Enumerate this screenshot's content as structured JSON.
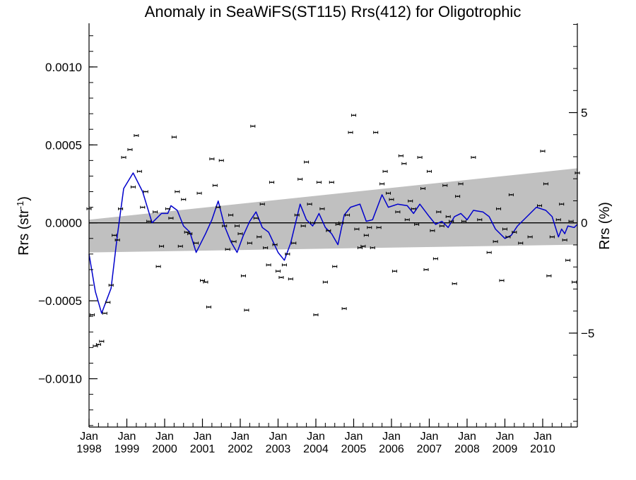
{
  "chart_data": {
    "type": "scatter",
    "title": "Anomaly in SeaWiFS(ST115) Rrs(412) for Oligotrophic",
    "ylabel": {
      "prefix": "Rrs (str",
      "superscript": "-1",
      "suffix": ")"
    },
    "y2label": "Rrs (%)",
    "xlim": [
      "1998-01",
      "2010-12"
    ],
    "ylim": [
      -0.00131,
      0.00128
    ],
    "y2lim": [
      -9.26,
      9.05
    ],
    "x_ticks": [
      {
        "date": "1998-01",
        "line1": "Jan",
        "line2": "1998"
      },
      {
        "date": "1999-01",
        "line1": "Jan",
        "line2": "1999"
      },
      {
        "date": "2000-01",
        "line1": "Jan",
        "line2": "2000"
      },
      {
        "date": "2001-01",
        "line1": "Jan",
        "line2": "2001"
      },
      {
        "date": "2002-01",
        "line1": "Jan",
        "line2": "2002"
      },
      {
        "date": "2003-01",
        "line1": "Jan",
        "line2": "2003"
      },
      {
        "date": "2004-01",
        "line1": "Jan",
        "line2": "2004"
      },
      {
        "date": "2005-01",
        "line1": "Jan",
        "line2": "2005"
      },
      {
        "date": "2006-01",
        "line1": "Jan",
        "line2": "2006"
      },
      {
        "date": "2007-01",
        "line1": "Jan",
        "line2": "2007"
      },
      {
        "date": "2008-01",
        "line1": "Jan",
        "line2": "2008"
      },
      {
        "date": "2009-01",
        "line1": "Jan",
        "line2": "2009"
      },
      {
        "date": "2010-01",
        "line1": "Jan",
        "line2": "2010"
      }
    ],
    "y_ticks": [
      {
        "value": 0.001,
        "label": "0.0010"
      },
      {
        "value": 0.0005,
        "label": "0.0005"
      },
      {
        "value": 0.0,
        "label": "0.0000"
      },
      {
        "value": -0.0005,
        "label": "−0.0005"
      },
      {
        "value": -0.001,
        "label": "−0.0010"
      }
    ],
    "y2_ticks": [
      {
        "value": 5,
        "label": "5"
      },
      {
        "value": 0,
        "label": "0"
      },
      {
        "value": -5,
        "label": "−5"
      }
    ],
    "grid": false,
    "colors": {
      "smoothed": "#0000cc",
      "band": "#c0c0c0",
      "points": "#000000",
      "zero_line": "#000000"
    },
    "band": {
      "upper": [
        {
          "date": "1998-01",
          "y": 2e-05
        },
        {
          "date": "2010-12",
          "y": 0.00035
        }
      ],
      "lower": [
        {
          "date": "1998-01",
          "y": -0.00019
        },
        {
          "date": "2010-12",
          "y": -0.00014
        }
      ]
    },
    "points": [
      {
        "date": "1998-01",
        "y": 9e-05
      },
      {
        "date": "1998-02",
        "y": -0.00059
      },
      {
        "date": "1998-03",
        "y": -0.00079
      },
      {
        "date": "1998-04",
        "y": -0.00078
      },
      {
        "date": "1998-05",
        "y": -0.00076
      },
      {
        "date": "1998-06",
        "y": -0.00058
      },
      {
        "date": "1998-07",
        "y": -0.00051
      },
      {
        "date": "1998-08",
        "y": -0.0004
      },
      {
        "date": "1998-09",
        "y": -8e-05
      },
      {
        "date": "1998-10",
        "y": -0.00011
      },
      {
        "date": "1998-11",
        "y": 9e-05
      },
      {
        "date": "1998-12",
        "y": 0.00042
      },
      {
        "date": "1999-02",
        "y": 0.00047
      },
      {
        "date": "1999-03",
        "y": 0.00023
      },
      {
        "date": "1999-04",
        "y": 0.00056
      },
      {
        "date": "1999-05",
        "y": 0.00033
      },
      {
        "date": "1999-06",
        "y": 0.0001
      },
      {
        "date": "1999-07",
        "y": 0.0002
      },
      {
        "date": "1999-08",
        "y": 1e-05
      },
      {
        "date": "1999-10",
        "y": 7e-05
      },
      {
        "date": "1999-11",
        "y": -0.00028
      },
      {
        "date": "1999-12",
        "y": -0.00015
      },
      {
        "date": "2000-02",
        "y": 9e-05
      },
      {
        "date": "2000-03",
        "y": 3e-05
      },
      {
        "date": "2000-04",
        "y": 0.00055
      },
      {
        "date": "2000-05",
        "y": 0.0002
      },
      {
        "date": "2000-06",
        "y": -0.00015
      },
      {
        "date": "2000-07",
        "y": 0.00015
      },
      {
        "date": "2000-08",
        "y": -6e-05
      },
      {
        "date": "2000-09",
        "y": -7e-05
      },
      {
        "date": "2000-11",
        "y": -0.00013
      },
      {
        "date": "2000-12",
        "y": 0.00019
      },
      {
        "date": "2001-01",
        "y": -0.00037
      },
      {
        "date": "2001-02",
        "y": -0.00038
      },
      {
        "date": "2001-03",
        "y": -0.00054
      },
      {
        "date": "2001-04",
        "y": 0.00041
      },
      {
        "date": "2001-05",
        "y": 0.00024
      },
      {
        "date": "2001-06",
        "y": 0.0001
      },
      {
        "date": "2001-07",
        "y": 0.0004
      },
      {
        "date": "2001-08",
        "y": -2e-05
      },
      {
        "date": "2001-09",
        "y": -0.00017
      },
      {
        "date": "2001-10",
        "y": 5e-05
      },
      {
        "date": "2001-11",
        "y": -0.00012
      },
      {
        "date": "2001-12",
        "y": -2e-05
      },
      {
        "date": "2002-01",
        "y": -7e-05
      },
      {
        "date": "2002-02",
        "y": -0.00034
      },
      {
        "date": "2002-03",
        "y": -0.00056
      },
      {
        "date": "2002-04",
        "y": -0.00013
      },
      {
        "date": "2002-05",
        "y": 0.00062
      },
      {
        "date": "2002-06",
        "y": 3e-05
      },
      {
        "date": "2002-07",
        "y": -9e-05
      },
      {
        "date": "2002-08",
        "y": 0.00012
      },
      {
        "date": "2002-09",
        "y": -0.00016
      },
      {
        "date": "2002-10",
        "y": -0.00027
      },
      {
        "date": "2002-11",
        "y": 0.00026
      },
      {
        "date": "2002-12",
        "y": -0.00014
      },
      {
        "date": "2003-01",
        "y": -0.00031
      },
      {
        "date": "2003-02",
        "y": -0.00035
      },
      {
        "date": "2003-03",
        "y": -0.00027
      },
      {
        "date": "2003-04",
        "y": -0.0002
      },
      {
        "date": "2003-05",
        "y": -0.00036
      },
      {
        "date": "2003-06",
        "y": -0.00013
      },
      {
        "date": "2003-07",
        "y": 5e-05
      },
      {
        "date": "2003-08",
        "y": 0.00028
      },
      {
        "date": "2003-09",
        "y": -2e-05
      },
      {
        "date": "2003-10",
        "y": 0.00039
      },
      {
        "date": "2003-11",
        "y": 0.00012
      },
      {
        "date": "2003-12",
        "y": 0
      },
      {
        "date": "2004-01",
        "y": -0.00059
      },
      {
        "date": "2004-02",
        "y": 0.00026
      },
      {
        "date": "2004-03",
        "y": 9e-05
      },
      {
        "date": "2004-04",
        "y": -0.00038
      },
      {
        "date": "2004-05",
        "y": -5e-05
      },
      {
        "date": "2004-06",
        "y": 0.00026
      },
      {
        "date": "2004-07",
        "y": -0.00028
      },
      {
        "date": "2004-08",
        "y": -1e-05
      },
      {
        "date": "2004-09",
        "y": 0
      },
      {
        "date": "2004-10",
        "y": -0.00055
      },
      {
        "date": "2004-11",
        "y": 5e-05
      },
      {
        "date": "2004-12",
        "y": 0.00058
      },
      {
        "date": "2005-01",
        "y": 0.00069
      },
      {
        "date": "2005-02",
        "y": -4e-05
      },
      {
        "date": "2005-03",
        "y": -0.00016
      },
      {
        "date": "2005-04",
        "y": -0.00015
      },
      {
        "date": "2005-05",
        "y": -8e-05
      },
      {
        "date": "2005-06",
        "y": -3e-05
      },
      {
        "date": "2005-07",
        "y": -0.00016
      },
      {
        "date": "2005-08",
        "y": 0.00058
      },
      {
        "date": "2005-09",
        "y": -3e-05
      },
      {
        "date": "2005-10",
        "y": 0.00025
      },
      {
        "date": "2005-11",
        "y": 0.00033
      },
      {
        "date": "2005-12",
        "y": 0.00019
      },
      {
        "date": "2006-01",
        "y": 0.00015
      },
      {
        "date": "2006-02",
        "y": -0.00031
      },
      {
        "date": "2006-03",
        "y": 7e-05
      },
      {
        "date": "2006-04",
        "y": 0.00043
      },
      {
        "date": "2006-05",
        "y": 0.00038
      },
      {
        "date": "2006-06",
        "y": 2e-05
      },
      {
        "date": "2006-07",
        "y": 0.00014
      },
      {
        "date": "2006-08",
        "y": 9e-05
      },
      {
        "date": "2006-09",
        "y": -1e-05
      },
      {
        "date": "2006-10",
        "y": 0.00042
      },
      {
        "date": "2006-11",
        "y": 0.00022
      },
      {
        "date": "2006-12",
        "y": -0.0003
      },
      {
        "date": "2007-01",
        "y": 0.00033
      },
      {
        "date": "2007-02",
        "y": -5e-05
      },
      {
        "date": "2007-03",
        "y": -0.00023
      },
      {
        "date": "2007-04",
        "y": 7e-05
      },
      {
        "date": "2007-05",
        "y": -2e-05
      },
      {
        "date": "2007-06",
        "y": 0.00024
      },
      {
        "date": "2007-07",
        "y": 4e-05
      },
      {
        "date": "2007-08",
        "y": 1e-05
      },
      {
        "date": "2007-09",
        "y": -0.00039
      },
      {
        "date": "2007-10",
        "y": 0.00017
      },
      {
        "date": "2007-11",
        "y": 0.00025
      },
      {
        "date": "2007-12",
        "y": 1e-05
      },
      {
        "date": "2008-03",
        "y": 0.00042
      },
      {
        "date": "2008-05",
        "y": 2e-05
      },
      {
        "date": "2008-08",
        "y": -0.00019
      },
      {
        "date": "2008-10",
        "y": -0.00012
      },
      {
        "date": "2008-11",
        "y": 9e-05
      },
      {
        "date": "2008-12",
        "y": -0.00037
      },
      {
        "date": "2009-01",
        "y": -4e-05
      },
      {
        "date": "2009-02",
        "y": -9e-05
      },
      {
        "date": "2009-03",
        "y": 0.00018
      },
      {
        "date": "2009-04",
        "y": -6e-05
      },
      {
        "date": "2009-06",
        "y": -0.00013
      },
      {
        "date": "2009-09",
        "y": -9e-05
      },
      {
        "date": "2009-12",
        "y": 0.00011
      },
      {
        "date": "2010-01",
        "y": 0.00046
      },
      {
        "date": "2010-02",
        "y": 0.00025
      },
      {
        "date": "2010-03",
        "y": -0.00034
      },
      {
        "date": "2010-04",
        "y": -9e-05
      },
      {
        "date": "2010-06",
        "y": 2e-05
      },
      {
        "date": "2010-07",
        "y": 0.00012
      },
      {
        "date": "2010-08",
        "y": -0.00011
      },
      {
        "date": "2010-09",
        "y": -0.00024
      },
      {
        "date": "2010-10",
        "y": 1e-05
      },
      {
        "date": "2010-11",
        "y": -0.00038
      },
      {
        "date": "2010-12",
        "y": 0.00032
      }
    ],
    "smoothed": [
      {
        "date": "1998-01",
        "y": -0.0002
      },
      {
        "date": "1998-03",
        "y": -0.00044
      },
      {
        "date": "1998-05",
        "y": -0.00058
      },
      {
        "date": "1998-08",
        "y": -0.00042
      },
      {
        "date": "1998-10",
        "y": -8e-05
      },
      {
        "date": "1998-12",
        "y": 0.00022
      },
      {
        "date": "1999-03",
        "y": 0.00032
      },
      {
        "date": "1999-06",
        "y": 0.0002
      },
      {
        "date": "1999-09",
        "y": 0
      },
      {
        "date": "1999-12",
        "y": 6e-05
      },
      {
        "date": "2000-02",
        "y": 6e-05
      },
      {
        "date": "2000-03",
        "y": 0.00011
      },
      {
        "date": "2000-05",
        "y": 8e-05
      },
      {
        "date": "2000-07",
        "y": -2e-05
      },
      {
        "date": "2000-09",
        "y": -6e-05
      },
      {
        "date": "2000-11",
        "y": -0.00019
      },
      {
        "date": "2001-02",
        "y": -7e-05
      },
      {
        "date": "2001-04",
        "y": 2e-05
      },
      {
        "date": "2001-06",
        "y": 0.00014
      },
      {
        "date": "2001-08",
        "y": -2e-05
      },
      {
        "date": "2001-10",
        "y": -0.00012
      },
      {
        "date": "2001-12",
        "y": -0.00019
      },
      {
        "date": "2002-02",
        "y": -8e-05
      },
      {
        "date": "2002-04",
        "y": 1e-05
      },
      {
        "date": "2002-06",
        "y": 7e-05
      },
      {
        "date": "2002-08",
        "y": -3e-05
      },
      {
        "date": "2002-10",
        "y": -6e-05
      },
      {
        "date": "2003-01",
        "y": -0.00019
      },
      {
        "date": "2003-03",
        "y": -0.00024
      },
      {
        "date": "2003-05",
        "y": -0.00013
      },
      {
        "date": "2003-08",
        "y": 0.00012
      },
      {
        "date": "2003-10",
        "y": 2e-05
      },
      {
        "date": "2003-12",
        "y": -2e-05
      },
      {
        "date": "2004-02",
        "y": 6e-05
      },
      {
        "date": "2004-04",
        "y": -3e-05
      },
      {
        "date": "2004-06",
        "y": -7e-05
      },
      {
        "date": "2004-08",
        "y": -0.00014
      },
      {
        "date": "2004-10",
        "y": 5e-05
      },
      {
        "date": "2004-12",
        "y": 0.0001
      },
      {
        "date": "2005-03",
        "y": 0.00012
      },
      {
        "date": "2005-05",
        "y": 1e-05
      },
      {
        "date": "2005-07",
        "y": 2e-05
      },
      {
        "date": "2005-10",
        "y": 0.00018
      },
      {
        "date": "2005-12",
        "y": 0.0001
      },
      {
        "date": "2006-03",
        "y": 0.00012
      },
      {
        "date": "2006-06",
        "y": 0.00011
      },
      {
        "date": "2006-08",
        "y": 6e-05
      },
      {
        "date": "2006-10",
        "y": 0.00012
      },
      {
        "date": "2007-01",
        "y": 4e-05
      },
      {
        "date": "2007-03",
        "y": -1e-05
      },
      {
        "date": "2007-05",
        "y": 1e-05
      },
      {
        "date": "2007-07",
        "y": -3e-05
      },
      {
        "date": "2007-09",
        "y": 4e-05
      },
      {
        "date": "2007-11",
        "y": 6e-05
      },
      {
        "date": "2008-01",
        "y": 2e-05
      },
      {
        "date": "2008-03",
        "y": 8e-05
      },
      {
        "date": "2008-06",
        "y": 7e-05
      },
      {
        "date": "2008-08",
        "y": 4e-05
      },
      {
        "date": "2008-10",
        "y": -4e-05
      },
      {
        "date": "2009-01",
        "y": -0.0001
      },
      {
        "date": "2009-03",
        "y": -8e-05
      },
      {
        "date": "2009-05",
        "y": -2e-05
      },
      {
        "date": "2009-08",
        "y": 4e-05
      },
      {
        "date": "2009-11",
        "y": 0.0001
      },
      {
        "date": "2010-02",
        "y": 8e-05
      },
      {
        "date": "2010-04",
        "y": 4e-05
      },
      {
        "date": "2010-06",
        "y": -9e-05
      },
      {
        "date": "2010-07",
        "y": -4e-05
      },
      {
        "date": "2010-08",
        "y": -7e-05
      },
      {
        "date": "2010-09",
        "y": -2e-05
      },
      {
        "date": "2010-11",
        "y": -3e-05
      },
      {
        "date": "2010-12",
        "y": -1e-05
      }
    ]
  }
}
